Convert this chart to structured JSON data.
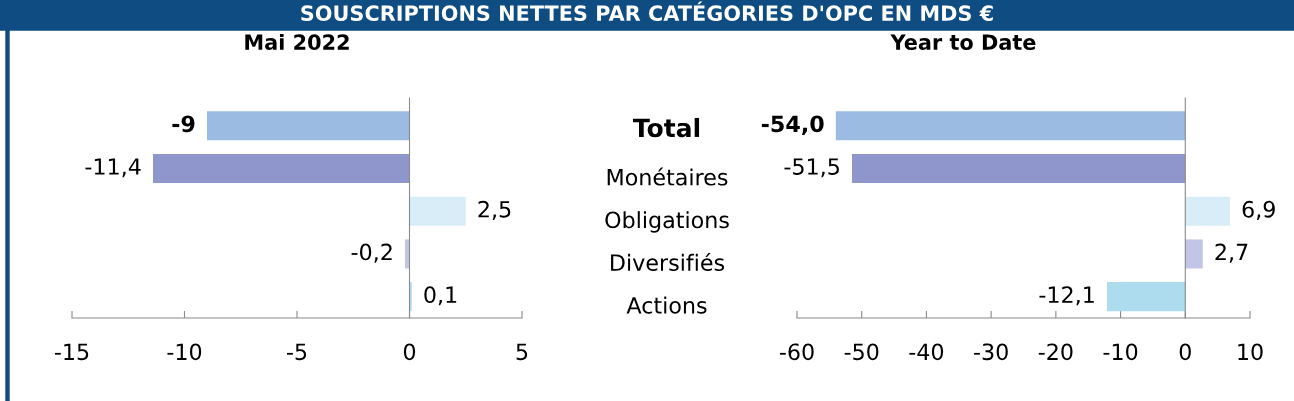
{
  "chart_data": [
    {
      "type": "bar",
      "orientation": "horizontal",
      "title": "Mai 2022",
      "annotations": [
        "SOUSCRIPTIONS NETTES PAR CATÉGORIES D'OPC EN MDS €"
      ],
      "categories": [
        null,
        null,
        null,
        null,
        null
      ],
      "values": [
        -9,
        -11.4,
        2.5,
        -0.2,
        0.1
      ],
      "value_labels": [
        "-9",
        "-11,4",
        "2,5",
        "-0,2",
        "0,1"
      ],
      "colors": [
        "#9bbbe3",
        "#8e96cb",
        "#d9edf8",
        "#c3c5e6",
        "#acdcee"
      ],
      "xlim": [
        -15,
        5
      ],
      "xticks": [
        -15,
        -10,
        -5,
        0,
        5
      ],
      "tick_labels": "x",
      "legend": false
    },
    {
      "type": "bar",
      "orientation": "horizontal",
      "title": "Year to Date",
      "categories": [
        "Total",
        "Monétaires",
        "Obligations",
        "Diversifiés",
        "Actions"
      ],
      "values": [
        -54.0,
        -51.5,
        6.9,
        2.7,
        -12.1
      ],
      "value_labels": [
        "-54,0",
        "-51,5",
        "6,9",
        "2,7",
        "-12,1"
      ],
      "colors": [
        "#9bbbe3",
        "#8e96cb",
        "#d9edf8",
        "#c3c5e6",
        "#acdcee"
      ],
      "xlim": [
        -60,
        10
      ],
      "xticks": [
        -60,
        -50,
        -40,
        -30,
        -20,
        -10,
        0,
        10
      ],
      "legend": false
    }
  ]
}
